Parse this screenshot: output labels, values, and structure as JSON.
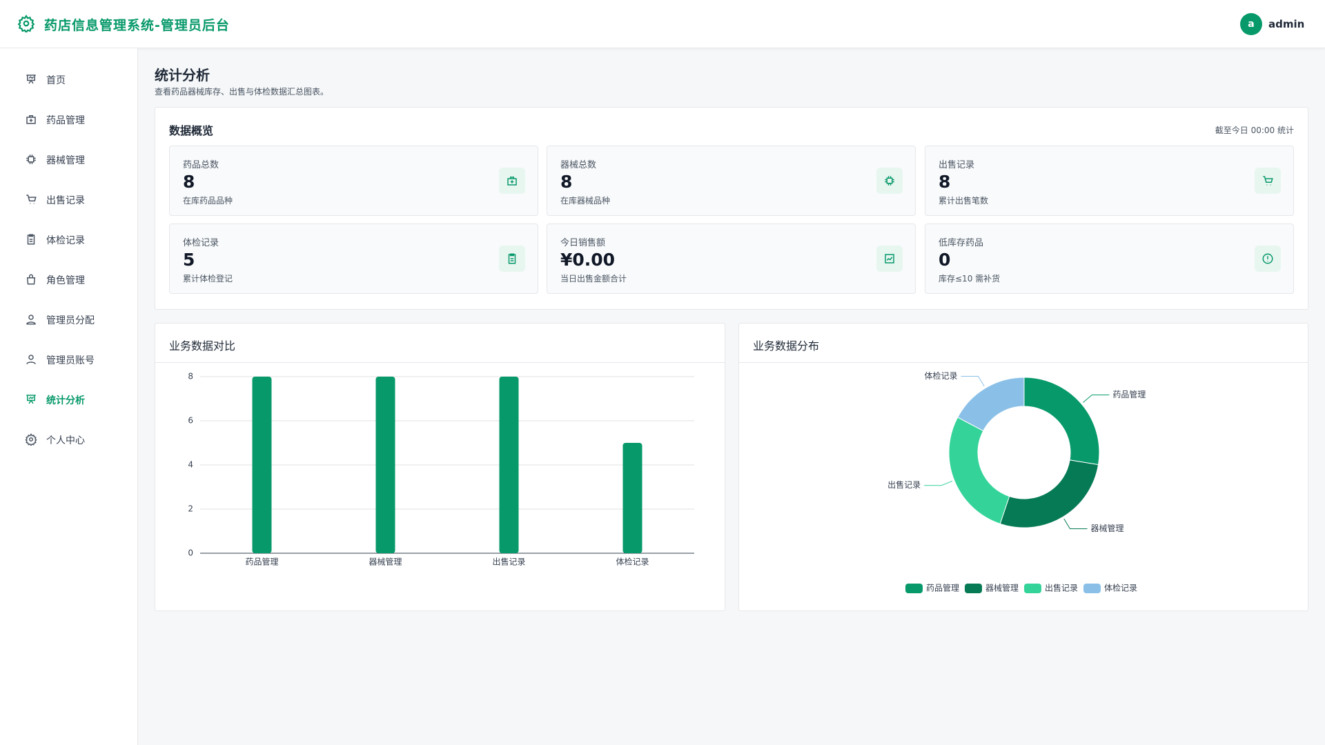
{
  "header": {
    "title": "药店信息管理系统-管理员后台",
    "avatar": "a",
    "user": "admin"
  },
  "sidebar": {
    "items": [
      "首页",
      "药品管理",
      "器械管理",
      "出售记录",
      "体检记录",
      "角色管理",
      "管理员分配",
      "管理员账号",
      "统计分析",
      "个人中心"
    ],
    "active": 8
  },
  "page": {
    "title": "统计分析",
    "subtitle": "查看药品器械库存、出售与体检数据汇总图表。"
  },
  "overview": {
    "title": "数据概览",
    "note": "截至今日 00:00 统计",
    "cards": [
      {
        "label": "药品总数",
        "value": "8",
        "desc": "在库药品品种"
      },
      {
        "label": "器械总数",
        "value": "8",
        "desc": "在库器械品种"
      },
      {
        "label": "出售记录",
        "value": "8",
        "desc": "累计出售笔数"
      },
      {
        "label": "体检记录",
        "value": "5",
        "desc": "累计体检登记"
      },
      {
        "label": "今日销售额",
        "value": "¥0.00",
        "desc": "当日出售金额合计"
      },
      {
        "label": "低库存药品",
        "value": "0",
        "desc": "库存≤10 需补货"
      }
    ]
  },
  "chart_data": [
    {
      "type": "bar",
      "title": "业务数据对比",
      "categories": [
        "药品管理",
        "器械管理",
        "出售记录",
        "体检记录"
      ],
      "values": [
        8,
        8,
        8,
        5
      ],
      "color": "#07996a",
      "ylim": [
        0,
        8
      ],
      "yticks": [
        0,
        2,
        4,
        6,
        8
      ],
      "grid": true
    },
    {
      "type": "pie",
      "title": "业务数据分布",
      "categories": [
        "药品管理",
        "器械管理",
        "出售记录",
        "体检记录"
      ],
      "values": [
        8,
        8,
        8,
        5
      ],
      "colors": [
        "#07996a",
        "#067a55",
        "#34d399",
        "#8ac0e8"
      ],
      "legend": "bottom"
    }
  ]
}
